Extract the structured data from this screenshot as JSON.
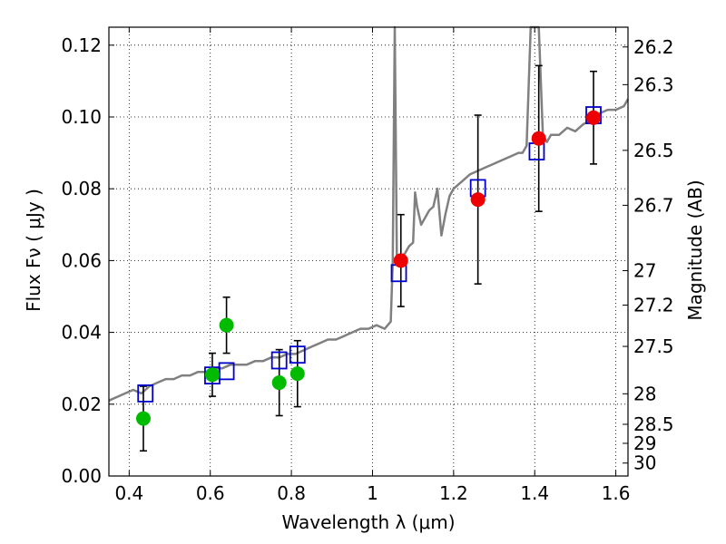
{
  "chart_data": {
    "type": "scatter",
    "xlabel": "Wavelength  λ (μm)",
    "ylabel": "Flux  Fν  ( μJy )",
    "ylabel_right": "Magnitude (AB)",
    "xlim": [
      0.35,
      1.63
    ],
    "ylim": [
      0.0,
      0.125
    ],
    "x_ticks": [
      0.4,
      0.6,
      0.8,
      1.0,
      1.2,
      1.4,
      1.6
    ],
    "x_tick_labels": [
      "0.4",
      "0.6",
      "0.8",
      "1",
      "1.2",
      "1.4",
      "1.6"
    ],
    "y_ticks": [
      0.0,
      0.02,
      0.04,
      0.06,
      0.08,
      0.1,
      0.12
    ],
    "y_tick_labels": [
      "0.00",
      "0.02",
      "0.04",
      "0.06",
      "0.08",
      "0.10",
      "0.12"
    ],
    "right_ticks": [
      {
        "label": "26.2",
        "flux": 0.1195
      },
      {
        "label": "26.3",
        "flux": 0.109
      },
      {
        "label": "26.5",
        "flux": 0.0907
      },
      {
        "label": "26.7",
        "flux": 0.0754
      },
      {
        "label": "27",
        "flux": 0.0572
      },
      {
        "label": "27.2",
        "flux": 0.0476
      },
      {
        "label": "27.5",
        "flux": 0.0361
      },
      {
        "label": "28",
        "flux": 0.0229
      },
      {
        "label": "28.5",
        "flux": 0.0144
      },
      {
        "label": "29",
        "flux": 0.0091
      },
      {
        "label": "30",
        "flux": 0.0036
      }
    ],
    "grid": true,
    "colors": {
      "model": "#808080",
      "model_points": "#0000cc",
      "green_points": "#00bb00",
      "red_points": "#ee0000",
      "errorbar": "#000000"
    },
    "model_spectrum": {
      "x": [
        0.35,
        0.37,
        0.39,
        0.41,
        0.43,
        0.45,
        0.47,
        0.49,
        0.51,
        0.53,
        0.55,
        0.57,
        0.59,
        0.61,
        0.63,
        0.65,
        0.67,
        0.69,
        0.71,
        0.73,
        0.75,
        0.77,
        0.79,
        0.81,
        0.83,
        0.85,
        0.87,
        0.89,
        0.91,
        0.93,
        0.95,
        0.97,
        0.99,
        1.01,
        1.03,
        1.045,
        1.05,
        1.055,
        1.06,
        1.065,
        1.07,
        1.08,
        1.09,
        1.1,
        1.105,
        1.11,
        1.12,
        1.13,
        1.14,
        1.15,
        1.16,
        1.17,
        1.18,
        1.19,
        1.2,
        1.22,
        1.24,
        1.26,
        1.28,
        1.3,
        1.32,
        1.34,
        1.36,
        1.37,
        1.38,
        1.39,
        1.4,
        1.41,
        1.42,
        1.43,
        1.44,
        1.46,
        1.48,
        1.5,
        1.52,
        1.54,
        1.56,
        1.58,
        1.6,
        1.62,
        1.63
      ],
      "y": [
        0.021,
        0.022,
        0.023,
        0.024,
        0.023,
        0.025,
        0.026,
        0.027,
        0.027,
        0.028,
        0.028,
        0.029,
        0.029,
        0.03,
        0.03,
        0.031,
        0.031,
        0.031,
        0.032,
        0.032,
        0.033,
        0.033,
        0.034,
        0.034,
        0.035,
        0.036,
        0.037,
        0.038,
        0.038,
        0.039,
        0.04,
        0.041,
        0.041,
        0.042,
        0.041,
        0.043,
        0.06,
        0.13,
        0.061,
        0.06,
        0.061,
        0.062,
        0.064,
        0.065,
        0.079,
        0.075,
        0.07,
        0.072,
        0.074,
        0.075,
        0.08,
        0.067,
        0.073,
        0.078,
        0.08,
        0.082,
        0.084,
        0.085,
        0.086,
        0.087,
        0.088,
        0.089,
        0.09,
        0.09,
        0.092,
        0.13,
        0.13,
        0.13,
        0.095,
        0.093,
        0.095,
        0.095,
        0.097,
        0.096,
        0.098,
        0.099,
        0.101,
        0.102,
        0.102,
        0.103,
        0.105
      ]
    },
    "series": [
      {
        "marker": "square",
        "points": [
          {
            "x": 0.44,
            "y": 0.023
          },
          {
            "x": 0.605,
            "y": 0.028
          },
          {
            "x": 0.64,
            "y": 0.0292
          },
          {
            "x": 0.77,
            "y": 0.0322
          },
          {
            "x": 0.815,
            "y": 0.0338
          },
          {
            "x": 1.065,
            "y": 0.0565
          },
          {
            "x": 1.26,
            "y": 0.0802
          },
          {
            "x": 1.405,
            "y": 0.0904
          },
          {
            "x": 1.545,
            "y": 0.1005
          }
        ]
      },
      {
        "marker": "circle",
        "color_key": "green_points",
        "points": [
          {
            "x": 0.435,
            "y": 0.016,
            "err": 0.009
          },
          {
            "x": 0.605,
            "y": 0.0282,
            "err": 0.006
          },
          {
            "x": 0.64,
            "y": 0.042,
            "err": 0.0078
          },
          {
            "x": 0.77,
            "y": 0.026,
            "err": 0.0092
          },
          {
            "x": 0.815,
            "y": 0.0285,
            "err": 0.0092
          }
        ]
      },
      {
        "marker": "circle",
        "color_key": "red_points",
        "points": [
          {
            "x": 1.07,
            "y": 0.06,
            "err": 0.0128
          },
          {
            "x": 1.26,
            "y": 0.077,
            "err": 0.0235
          },
          {
            "x": 1.41,
            "y": 0.094,
            "err": 0.0203
          },
          {
            "x": 1.545,
            "y": 0.0998,
            "err": 0.0129
          }
        ]
      }
    ]
  }
}
